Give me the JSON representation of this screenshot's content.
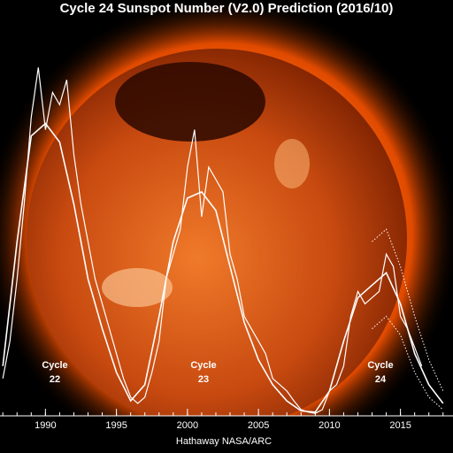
{
  "chart_data": {
    "type": "line",
    "title": "Cycle 24 Sunspot Number (V2.0) Prediction (2016/10)",
    "credit": "Hathaway  NASA/ARC",
    "annotations": [
      [
        "Cycle",
        "22"
      ],
      [
        "Cycle",
        "23"
      ],
      [
        "Cycle",
        "24"
      ]
    ],
    "xlim": [
      1986.8,
      2018.7
    ],
    "xticks": [
      1990,
      1995,
      2000,
      2005,
      2010,
      2015
    ],
    "ylim": [
      0,
      320
    ],
    "series": [
      {
        "color": "#ffffff",
        "style": "solid",
        "width": 1.2,
        "x": [
          1987.0,
          1987.5,
          1988.0,
          1988.5,
          1989.0,
          1989.5,
          1990.0,
          1990.5,
          1991.0,
          1991.5,
          1992.0,
          1992.5,
          1993.0,
          1993.5,
          1994.0,
          1994.5,
          1995.0,
          1995.5,
          1996.0,
          1996.5,
          1997.0,
          1997.5,
          1998.0,
          1998.5,
          1999.0,
          1999.5,
          2000.0,
          2000.5,
          2001.0,
          2001.5,
          2002.0,
          2002.5,
          2003.0,
          2003.5,
          2004.0,
          2004.5,
          2005.0,
          2005.5,
          2006.0,
          2006.5,
          2007.0,
          2007.5,
          2008.0,
          2008.5,
          2009.0,
          2009.5,
          2010.0,
          2010.5,
          2011.0,
          2011.5,
          2012.0,
          2012.5,
          2013.0,
          2013.5,
          2014.0,
          2014.5,
          2015.0,
          2015.5,
          2016.0,
          2016.5
        ],
        "values": [
          30,
          60,
          110,
          170,
          240,
          280,
          230,
          260,
          250,
          270,
          210,
          170,
          140,
          110,
          90,
          70,
          50,
          30,
          15,
          10,
          15,
          35,
          60,
          110,
          130,
          150,
          200,
          230,
          160,
          200,
          190,
          180,
          130,
          110,
          80,
          70,
          60,
          50,
          30,
          25,
          20,
          12,
          5,
          3,
          2,
          5,
          20,
          25,
          40,
          80,
          100,
          90,
          95,
          100,
          130,
          120,
          80,
          70,
          55,
          40
        ]
      },
      {
        "color": "#ffffff",
        "style": "solid",
        "width": 1.6,
        "x": [
          1987,
          1988,
          1989,
          1990,
          1991,
          1992,
          1993,
          1994,
          1995,
          1996,
          1997,
          1998,
          1999,
          2000,
          2001,
          2002,
          2003,
          2004,
          2005,
          2006,
          2007,
          2008,
          2009,
          2010,
          2011,
          2012,
          2013,
          2014,
          2015,
          2016,
          2017,
          2018
        ],
        "values": [
          40,
          140,
          225,
          235,
          220,
          170,
          110,
          70,
          35,
          12,
          25,
          80,
          140,
          175,
          180,
          165,
          120,
          75,
          45,
          25,
          12,
          4,
          3,
          20,
          60,
          95,
          105,
          115,
          90,
          50,
          25,
          10
        ]
      },
      {
        "color": "#ffffff",
        "style": "dotted",
        "width": 1,
        "x": [
          2013,
          2014,
          2015,
          2016,
          2017,
          2018
        ],
        "values": [
          140,
          150,
          120,
          80,
          45,
          20
        ]
      },
      {
        "color": "#ffffff",
        "style": "dotted",
        "width": 1,
        "x": [
          2013,
          2014,
          2015,
          2016,
          2017,
          2018
        ],
        "values": [
          70,
          80,
          65,
          35,
          15,
          5
        ]
      }
    ]
  }
}
